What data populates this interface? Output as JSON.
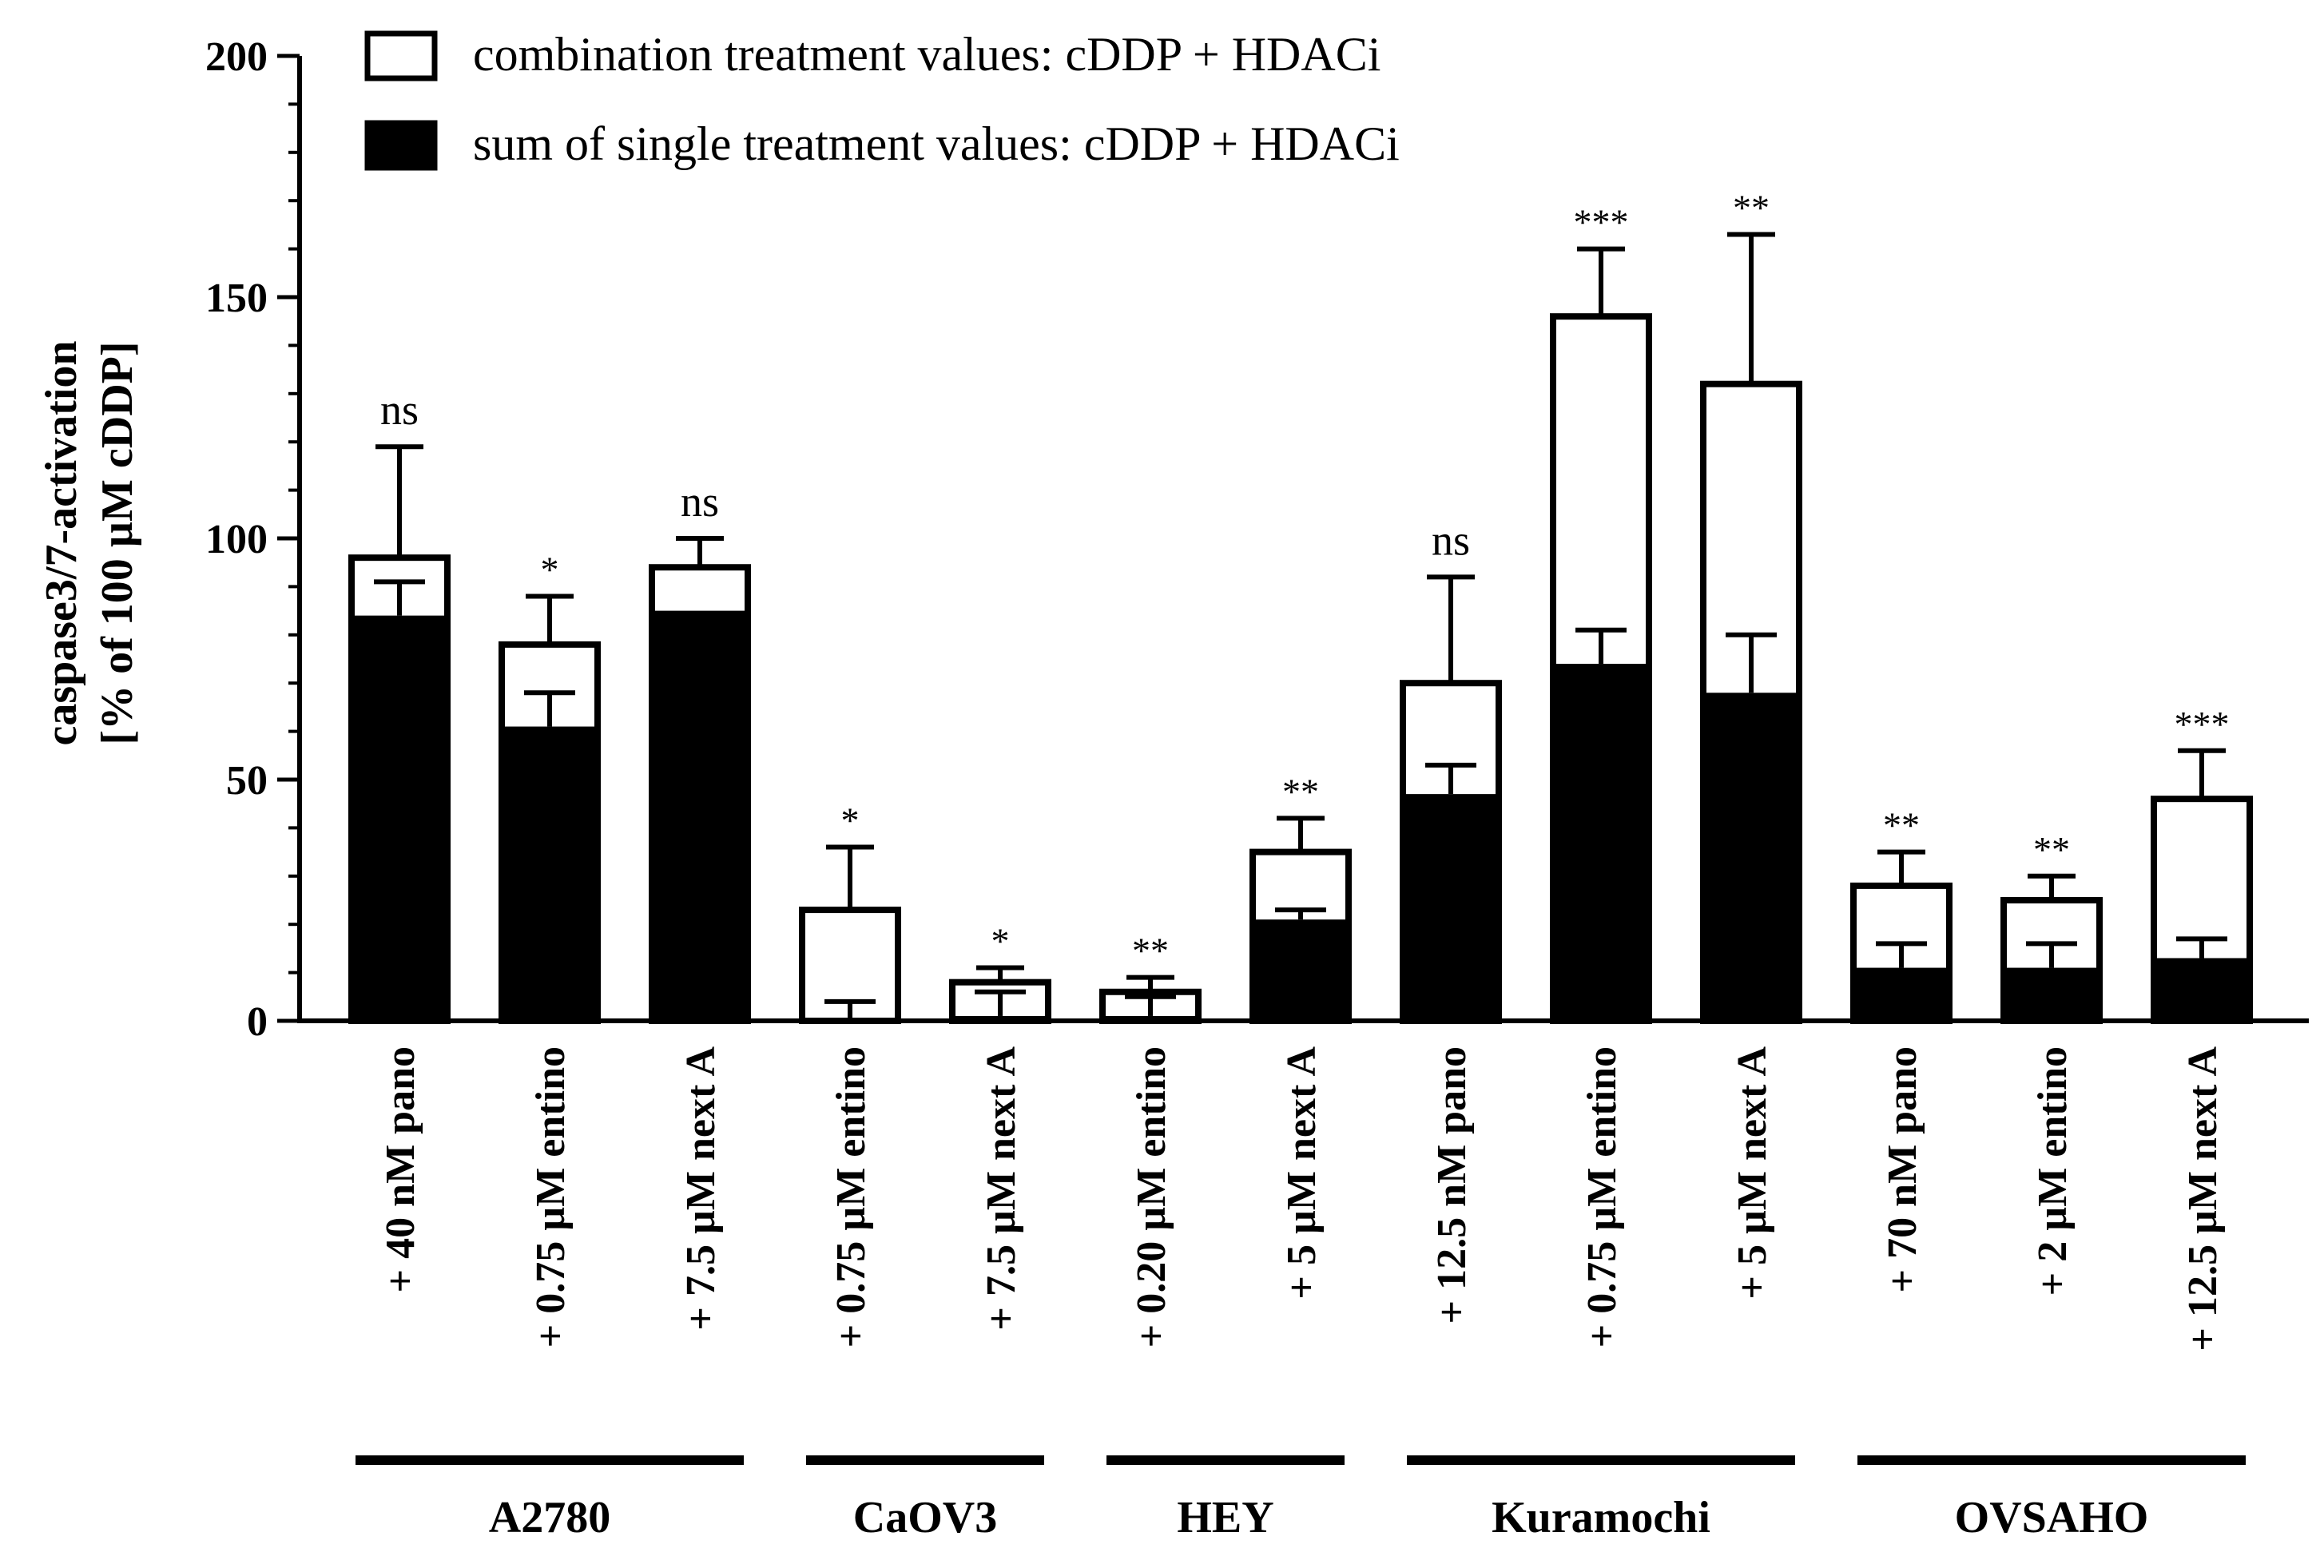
{
  "chart_data": {
    "type": "bar",
    "ylabel_line1": "caspase3/7-activation",
    "ylabel_line2": "[% of 100 µM cDDP]",
    "ylim": [
      0,
      200
    ],
    "yticks": [
      "0",
      "50",
      "100",
      "150",
      "200"
    ],
    "ytick_values": [
      0,
      50,
      100,
      150,
      200
    ],
    "legend": {
      "position": "top-left",
      "items": [
        {
          "label": "combination treatment values: cDDP + HDACi",
          "fill": "#ffffff"
        },
        {
          "label": "sum of single treatment values: cDDP + HDACi",
          "fill": "#000000"
        }
      ]
    },
    "categories": [
      "+ 40 nM pano",
      "+ 0.75 µM entino",
      "+ 7.5 µM next A",
      "+ 0.75 µM entino",
      "+ 7.5 µM next A",
      "+ 0.20 µM entino",
      "+ 5 µM next A",
      "+ 12.5 nM pano",
      "+ 0.75 µM entino",
      "+ 5 µM next A",
      "+ 70 nM pano",
      "+ 2 µM entino",
      "+ 12.5 µM next A"
    ],
    "groups": [
      {
        "name": "A2780",
        "start": 0,
        "end": 2
      },
      {
        "name": "CaOV3",
        "start": 3,
        "end": 4
      },
      {
        "name": "HEY",
        "start": 5,
        "end": 6
      },
      {
        "name": "Kuramochi",
        "start": 7,
        "end": 9
      },
      {
        "name": "OVSAHO",
        "start": 10,
        "end": 12
      }
    ],
    "series": [
      {
        "name": "combination treatment values: cDDP + HDACi",
        "values": [
          96,
          78,
          94,
          23,
          8,
          6,
          35,
          70,
          146,
          132,
          28,
          25,
          46
        ],
        "error": [
          23,
          10,
          6,
          13,
          3,
          3,
          7,
          22,
          14,
          31,
          7,
          5,
          10
        ]
      },
      {
        "name": "sum of single treatment values: cDDP + HDACi",
        "values": [
          84,
          61,
          85,
          0,
          1,
          1,
          21,
          47,
          74,
          68,
          11,
          11,
          13
        ],
        "error": [
          7,
          7,
          0,
          4,
          5,
          4,
          2,
          6,
          7,
          12,
          5,
          5,
          4
        ]
      }
    ],
    "significance": [
      "ns",
      "*",
      "ns",
      "*",
      "*",
      "**",
      "**",
      "ns",
      "***",
      "**",
      "**",
      "**",
      "***"
    ]
  }
}
